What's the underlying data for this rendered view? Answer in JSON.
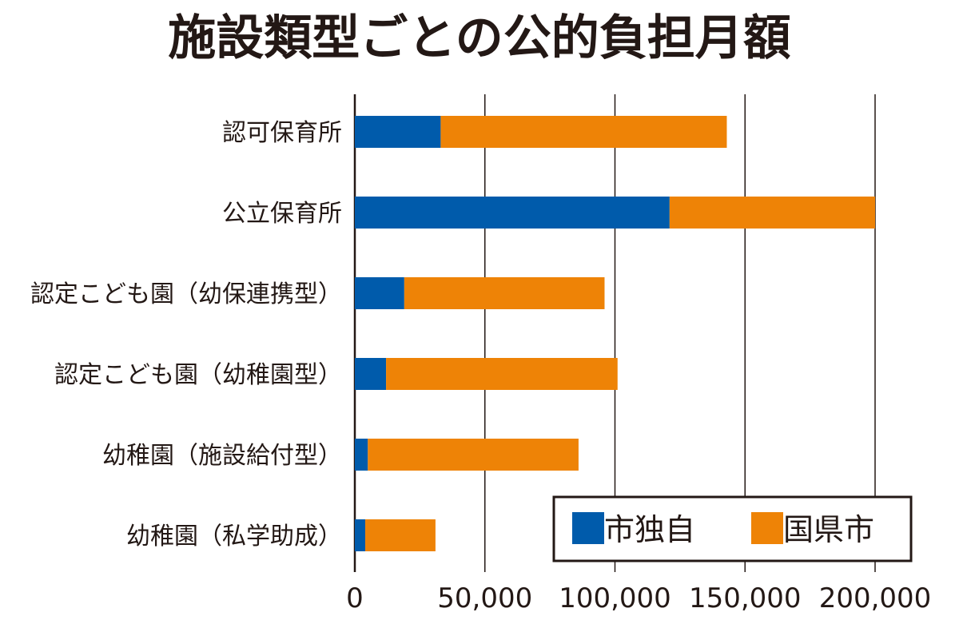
{
  "chart_data": {
    "type": "bar",
    "orientation": "horizontal",
    "stacked": true,
    "title": "施設類型ごとの公的負担月額",
    "xlabel": "",
    "ylabel": "",
    "xlim": [
      0,
      200000
    ],
    "xticks": [
      0,
      50000,
      100000,
      150000,
      200000
    ],
    "xtick_labels": [
      "0",
      "50,000",
      "100,000",
      "150,000",
      "200,000"
    ],
    "grid": true,
    "legend_position": "bottom-right",
    "categories": [
      "認可保育所",
      "公立保育所",
      "認定こども園（幼保連携型）",
      "認定こども園（幼稚園型）",
      "幼稚園（施設給付型）",
      "幼稚園（私学助成）"
    ],
    "series": [
      {
        "name": "市独自",
        "color": "#005bab",
        "values": [
          33000,
          121000,
          19000,
          12000,
          5000,
          4000
        ]
      },
      {
        "name": "国県市",
        "color": "#ee8306",
        "values": [
          110000,
          79000,
          77000,
          89000,
          81000,
          27000
        ]
      }
    ]
  }
}
